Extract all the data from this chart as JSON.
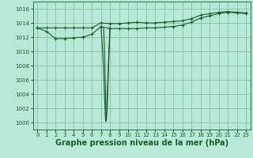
{
  "bg_color": "#b8e8d8",
  "grid_color": "#7ab89a",
  "line_color": "#1a5c2a",
  "xlabel": "Graphe pression niveau de la mer (hPa)",
  "xlabel_fontsize": 7,
  "xlim": [
    -0.5,
    23.5
  ],
  "ylim": [
    999.0,
    1017.0
  ],
  "yticks": [
    1000,
    1002,
    1004,
    1006,
    1008,
    1010,
    1012,
    1014,
    1016
  ],
  "xticks": [
    0,
    1,
    2,
    3,
    4,
    5,
    6,
    7,
    8,
    9,
    10,
    11,
    12,
    13,
    14,
    15,
    16,
    17,
    18,
    19,
    20,
    21,
    22,
    23
  ],
  "series1_x": [
    0,
    1,
    2,
    3,
    4,
    5,
    6,
    7,
    8,
    9,
    10,
    11,
    12,
    13,
    14,
    15,
    16,
    17,
    18,
    19,
    20,
    21,
    22,
    23
  ],
  "series1_y": [
    1013.3,
    1013.3,
    1013.3,
    1013.3,
    1013.3,
    1013.3,
    1013.3,
    1014.0,
    1013.9,
    1013.9,
    1014.0,
    1014.1,
    1014.0,
    1014.0,
    1014.1,
    1014.2,
    1014.3,
    1014.6,
    1015.1,
    1015.3,
    1015.5,
    1015.6,
    1015.5,
    1015.4
  ],
  "series2_x": [
    0,
    1,
    2,
    3,
    4,
    5,
    6,
    7,
    8,
    9,
    10,
    11,
    12,
    13,
    14,
    15,
    16,
    17,
    18,
    19,
    20,
    21,
    22,
    23
  ],
  "series2_y": [
    1013.3,
    1012.8,
    1011.8,
    1011.8,
    1011.9,
    1012.0,
    1012.4,
    1013.5,
    1013.2,
    1013.2,
    1013.2,
    1013.2,
    1013.3,
    1013.3,
    1013.4,
    1013.5,
    1013.7,
    1014.1,
    1014.7,
    1015.0,
    1015.3,
    1015.5,
    1015.4,
    1015.3
  ],
  "spike1_x": [
    7,
    7.15,
    7.3,
    7.45,
    7.5,
    7.55,
    7.6,
    7.65,
    7.7,
    8.0
  ],
  "spike1_y": [
    1013.5,
    1011.0,
    1007.5,
    1002.0,
    1000.5,
    1000.1,
    1000.5,
    1002.0,
    1004.0,
    1013.5
  ],
  "spike2_x": [
    7.3,
    7.4,
    7.5,
    7.55,
    7.6,
    7.7,
    7.8,
    8.0
  ],
  "spike2_y": [
    1013.3,
    1010.0,
    1005.0,
    1001.5,
    1000.2,
    1002.0,
    1006.0,
    1013.3
  ],
  "marker": "+",
  "markersize": 3,
  "linewidth": 0.8
}
